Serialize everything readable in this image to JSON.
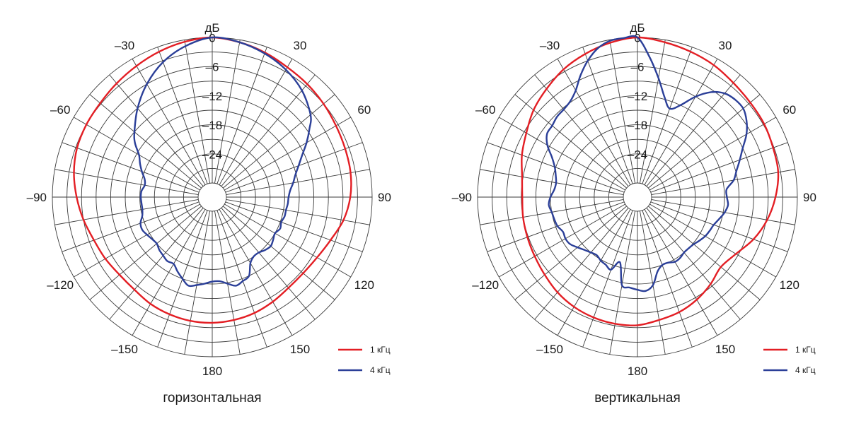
{
  "colors": {
    "s1": "#e31e24",
    "s2": "#2b3f98",
    "grid": "#3a3a3a"
  },
  "chart_data": [
    {
      "type": "polar-line",
      "title": "горизонтальная",
      "unit_label": "дБ",
      "radial_range": [
        -30,
        0
      ],
      "radial_ticks": [
        0,
        -6,
        -12,
        -18,
        -24
      ],
      "radial_tick_labels": [
        "0",
        "–6",
        "–12",
        "–18",
        "–24"
      ],
      "angle_ticks": [
        0,
        30,
        60,
        90,
        120,
        150,
        180,
        -150,
        -120,
        -90,
        -60,
        -30
      ],
      "angle_tick_labels": [
        "0",
        "30",
        "60",
        "90",
        "120",
        "150",
        "180",
        "–150",
        "–120",
        "–90",
        "–60",
        "–30"
      ],
      "series": [
        {
          "name": "1 кГц",
          "angles": [
            0,
            10,
            20,
            30,
            40,
            50,
            60,
            70,
            80,
            90,
            100,
            110,
            120,
            130,
            140,
            150,
            160,
            170,
            180,
            -170,
            -160,
            -150,
            -140,
            -130,
            -120,
            -110,
            -100,
            -90,
            -80,
            -70,
            -60,
            -50,
            -40,
            -30,
            -20,
            -10
          ],
          "values": [
            0,
            -0.5,
            -1.2,
            -2,
            -2.5,
            -3,
            -3.5,
            -3.8,
            -4,
            -4.5,
            -5.5,
            -7,
            -8,
            -8.5,
            -8.5,
            -8,
            -7.5,
            -7.2,
            -7,
            -7,
            -7.2,
            -7.5,
            -8,
            -8,
            -7.5,
            -7,
            -6,
            -5,
            -4,
            -3.3,
            -3,
            -2.8,
            -2.3,
            -1.7,
            -1,
            -0.4
          ]
        },
        {
          "name": "4 кГц",
          "angles": [
            0,
            10,
            20,
            30,
            40,
            50,
            55,
            60,
            65,
            70,
            75,
            80,
            85,
            90,
            95,
            100,
            105,
            110,
            115,
            120,
            125,
            130,
            135,
            140,
            145,
            150,
            155,
            160,
            165,
            170,
            175,
            180,
            -175,
            -170,
            -165,
            -160,
            -155,
            -150,
            -145,
            -140,
            -135,
            -130,
            -125,
            -120,
            -115,
            -110,
            -105,
            -100,
            -95,
            -90,
            -85,
            -80,
            -75,
            -70,
            -65,
            -60,
            -55,
            -50,
            -40,
            -30,
            -20,
            -10
          ],
          "values": [
            0,
            -0.5,
            -1.4,
            -2.6,
            -4.2,
            -6.5,
            -8.5,
            -10.5,
            -12.5,
            -14,
            -15.2,
            -16,
            -16.8,
            -17.2,
            -17.3,
            -17.5,
            -17.5,
            -17.8,
            -17.5,
            -18,
            -17.6,
            -17.2,
            -17.5,
            -18,
            -18,
            -17.2,
            -15,
            -14.5,
            -14,
            -14.8,
            -15.5,
            -15.5,
            -15,
            -14.5,
            -14,
            -15,
            -16,
            -17,
            -16.8,
            -17.2,
            -17.5,
            -18,
            -17.8,
            -17.4,
            -17,
            -17.2,
            -18,
            -18.3,
            -18.3,
            -18.2,
            -18.3,
            -18.8,
            -18.5,
            -17.5,
            -16.5,
            -15.5,
            -13.5,
            -12,
            -9,
            -6,
            -3.3,
            -1.3
          ]
        }
      ]
    },
    {
      "type": "polar-line",
      "title": "вертикальная",
      "unit_label": "дБ",
      "radial_range": [
        -30,
        0
      ],
      "radial_ticks": [
        0,
        -6,
        -12,
        -18,
        -24
      ],
      "radial_tick_labels": [
        "0",
        "–6",
        "–12",
        "–18",
        "–24"
      ],
      "angle_ticks": [
        0,
        30,
        60,
        90,
        120,
        150,
        180,
        -150,
        -120,
        -90,
        -60,
        -30
      ],
      "angle_tick_labels": [
        "0",
        "30",
        "60",
        "90",
        "120",
        "150",
        "180",
        "–150",
        "–120",
        "–90",
        "–60",
        "–30"
      ],
      "series": [
        {
          "name": "1 кГц",
          "angles": [
            0,
            10,
            20,
            30,
            40,
            50,
            60,
            70,
            80,
            90,
            100,
            110,
            120,
            130,
            140,
            150,
            160,
            170,
            180,
            -170,
            -160,
            -150,
            -140,
            -130,
            -120,
            -110,
            -100,
            -90,
            -80,
            -70,
            -60,
            -50,
            -40,
            -30,
            -20,
            -10
          ],
          "values": [
            0,
            -0.5,
            -1,
            -1.5,
            -2.2,
            -2.6,
            -2.8,
            -3.2,
            -3.5,
            -4.5,
            -5.8,
            -7.5,
            -9.5,
            -10.5,
            -9.5,
            -8.5,
            -7.7,
            -7.2,
            -6.5,
            -6.4,
            -6.5,
            -6.8,
            -7.3,
            -8,
            -8.5,
            -8.8,
            -9,
            -9.2,
            -8.8,
            -7.6,
            -6.5,
            -5,
            -3.8,
            -2.5,
            -1.5,
            -0.6
          ]
        },
        {
          "name": "4 кГц",
          "angles": [
            0,
            5,
            10,
            15,
            20,
            25,
            30,
            35,
            40,
            45,
            50,
            55,
            60,
            65,
            70,
            75,
            80,
            85,
            90,
            95,
            100,
            105,
            110,
            115,
            120,
            125,
            130,
            135,
            140,
            145,
            150,
            155,
            160,
            165,
            170,
            175,
            180,
            -175,
            -170,
            -165,
            -160,
            -155,
            -150,
            -145,
            -140,
            -135,
            -130,
            -125,
            -120,
            -115,
            -110,
            -105,
            -100,
            -95,
            -90,
            -85,
            -80,
            -75,
            -70,
            -65,
            -60,
            -55,
            -50,
            -45,
            -40,
            -35,
            -30,
            -25,
            -20,
            -15,
            -10,
            -5
          ],
          "values": [
            0,
            -4,
            -8,
            -11.5,
            -13.5,
            -12,
            -9,
            -6.5,
            -5,
            -4.5,
            -4.5,
            -5.5,
            -7,
            -9,
            -10.5,
            -11.8,
            -12.8,
            -14.5,
            -14.5,
            -14.2,
            -14.7,
            -15.5,
            -16.2,
            -16.5,
            -16.8,
            -17.3,
            -17.8,
            -18,
            -18,
            -17.6,
            -17.5,
            -18,
            -18,
            -17,
            -14.5,
            -13.5,
            -13.8,
            -14.2,
            -14.5,
            -19,
            -17,
            -17.5,
            -17.8,
            -18.3,
            -18,
            -17.5,
            -16.8,
            -16,
            -15.8,
            -16,
            -15.4,
            -15.2,
            -15,
            -14.6,
            -15,
            -15.7,
            -15.9,
            -15.5,
            -14.8,
            -13.5,
            -11.5,
            -10.2,
            -10,
            -9.5,
            -9.3,
            -8.8,
            -7.5,
            -5.2,
            -3,
            -1.2,
            -0.2,
            0.6
          ]
        }
      ]
    }
  ]
}
